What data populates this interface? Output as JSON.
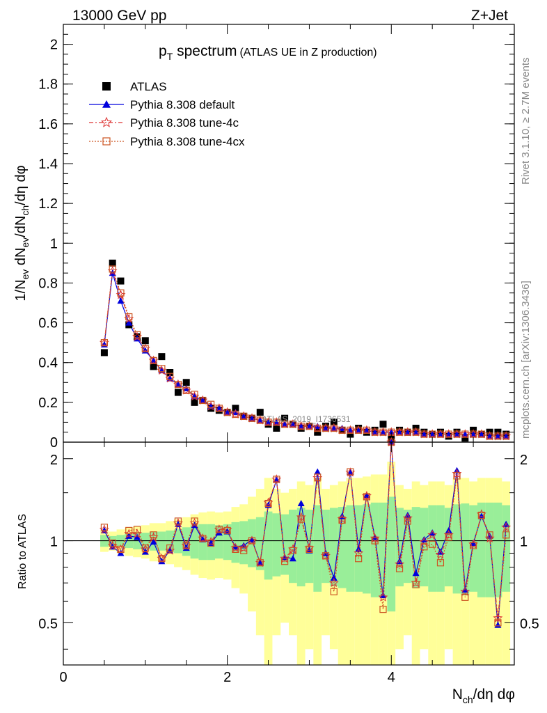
{
  "header": {
    "left": "13000 GeV pp",
    "right": "Z+Jet"
  },
  "title": {
    "main": "p",
    "sub": "T",
    "rest": " spectrum",
    "small": "(ATLAS UE in Z production)"
  },
  "side_labels": {
    "rivet": "Rivet 3.1.10, ≥ 2.7M events",
    "mcplots": "mcplots.cern.ch [arXiv:1306.3436]"
  },
  "watermark": "ATLAS_2019_I1736531",
  "colors": {
    "data": "#000000",
    "default": "#0000dd",
    "tune4c": "#dd3333",
    "tune4cx": "#cc5522",
    "band_yellow": "#ffff99",
    "band_green": "#99ee99"
  },
  "chart_data": [
    {
      "type": "scatter",
      "panel": "main",
      "ylabel": "1/N_ev dN_ev/dN_ch/dη dφ",
      "xlim": [
        0,
        5.5
      ],
      "ylim": [
        0,
        2.1
      ],
      "yticks": [
        0,
        0.2,
        0.4,
        0.6,
        0.8,
        1,
        1.2,
        1.4,
        1.6,
        1.8,
        2
      ],
      "ytick_labels": [
        "0",
        "0.2",
        "0.4",
        "0.6",
        "0.8",
        "1",
        "1.2",
        "1.4",
        "1.6",
        "1.8",
        "2"
      ],
      "legend_position": "top-left",
      "x": [
        0.5,
        0.6,
        0.7,
        0.8,
        0.9,
        1.0,
        1.1,
        1.2,
        1.3,
        1.4,
        1.5,
        1.6,
        1.7,
        1.8,
        1.9,
        2.0,
        2.1,
        2.2,
        2.3,
        2.4,
        2.5,
        2.6,
        2.7,
        2.8,
        2.9,
        3.0,
        3.1,
        3.2,
        3.3,
        3.4,
        3.5,
        3.6,
        3.7,
        3.8,
        3.9,
        4.0,
        4.1,
        4.2,
        4.3,
        4.4,
        4.5,
        4.6,
        4.7,
        4.8,
        4.9,
        5.0,
        5.1,
        5.2,
        5.3,
        5.4
      ],
      "series": [
        {
          "name": "ATLAS",
          "marker": "square",
          "values": [
            0.45,
            0.9,
            0.81,
            0.59,
            0.53,
            0.51,
            0.38,
            0.43,
            0.35,
            0.25,
            0.3,
            0.2,
            0.21,
            0.17,
            0.16,
            0.15,
            0.17,
            0.13,
            0.12,
            0.15,
            0.09,
            0.07,
            0.12,
            0.09,
            0.07,
            0.08,
            0.05,
            0.08,
            0.1,
            0.06,
            0.04,
            0.07,
            0.05,
            0.06,
            0.09,
            0.02,
            0.06,
            0.05,
            0.07,
            0.05,
            0.04,
            0.05,
            0.03,
            0.05,
            0.02,
            0.06,
            0.04,
            0.05,
            0.05,
            0.04
          ]
        },
        {
          "name": "Pythia 8.308 default",
          "marker": "triangle",
          "values": [
            0.49,
            0.85,
            0.71,
            0.6,
            0.52,
            0.46,
            0.41,
            0.36,
            0.32,
            0.29,
            0.27,
            0.23,
            0.21,
            0.18,
            0.17,
            0.15,
            0.15,
            0.13,
            0.12,
            0.11,
            0.1,
            0.1,
            0.09,
            0.09,
            0.08,
            0.08,
            0.08,
            0.07,
            0.07,
            0.07,
            0.06,
            0.06,
            0.06,
            0.05,
            0.05,
            0.05,
            0.05,
            0.05,
            0.05,
            0.04,
            0.04,
            0.04,
            0.04,
            0.04,
            0.04,
            0.04,
            0.04,
            0.03,
            0.03,
            0.03
          ]
        },
        {
          "name": "Pythia 8.308 tune-4c",
          "marker": "star",
          "values": [
            0.5,
            0.86,
            0.74,
            0.62,
            0.53,
            0.47,
            0.41,
            0.36,
            0.32,
            0.29,
            0.26,
            0.23,
            0.21,
            0.18,
            0.17,
            0.15,
            0.14,
            0.13,
            0.12,
            0.11,
            0.1,
            0.1,
            0.09,
            0.09,
            0.08,
            0.08,
            0.07,
            0.07,
            0.07,
            0.06,
            0.06,
            0.06,
            0.06,
            0.05,
            0.05,
            0.05,
            0.05,
            0.05,
            0.05,
            0.04,
            0.04,
            0.04,
            0.04,
            0.04,
            0.04,
            0.04,
            0.04,
            0.03,
            0.03,
            0.03
          ]
        },
        {
          "name": "Pythia 8.308 tune-4cx",
          "marker": "open-square",
          "values": [
            0.5,
            0.87,
            0.75,
            0.63,
            0.54,
            0.47,
            0.41,
            0.37,
            0.33,
            0.29,
            0.26,
            0.24,
            0.21,
            0.19,
            0.17,
            0.15,
            0.14,
            0.13,
            0.12,
            0.11,
            0.1,
            0.1,
            0.09,
            0.09,
            0.08,
            0.08,
            0.07,
            0.07,
            0.07,
            0.06,
            0.06,
            0.06,
            0.06,
            0.05,
            0.05,
            0.05,
            0.05,
            0.05,
            0.05,
            0.04,
            0.04,
            0.04,
            0.04,
            0.04,
            0.04,
            0.04,
            0.04,
            0.03,
            0.03,
            0.03
          ]
        }
      ]
    },
    {
      "type": "line",
      "panel": "ratio",
      "ylabel": "Ratio to ATLAS",
      "xlabel": "N_ch/dη dφ",
      "xlim": [
        0,
        5.5
      ],
      "ylim": [
        0.35,
        2.3
      ],
      "log_y": true,
      "xticks": [
        0,
        2,
        4
      ],
      "xtick_labels": [
        "0",
        "2",
        "4"
      ],
      "yticks": [
        0.5,
        1,
        2
      ],
      "ytick_labels": [
        "0.5",
        "1",
        "2"
      ],
      "x": [
        0.5,
        0.6,
        0.7,
        0.8,
        0.9,
        1.0,
        1.1,
        1.2,
        1.3,
        1.4,
        1.5,
        1.6,
        1.7,
        1.8,
        1.9,
        2.0,
        2.1,
        2.2,
        2.3,
        2.4,
        2.5,
        2.6,
        2.7,
        2.8,
        2.9,
        3.0,
        3.1,
        3.2,
        3.3,
        3.4,
        3.5,
        3.6,
        3.7,
        3.8,
        3.9,
        4.0,
        4.1,
        4.2,
        4.3,
        4.4,
        4.5,
        4.6,
        4.7,
        4.8,
        4.9,
        5.0,
        5.1,
        5.2,
        5.3,
        5.4
      ],
      "band_green_halfwidth": [
        0.05,
        0.04,
        0.05,
        0.06,
        0.07,
        0.07,
        0.08,
        0.08,
        0.09,
        0.1,
        0.12,
        0.14,
        0.15,
        0.15,
        0.14,
        0.15,
        0.17,
        0.18,
        0.2,
        0.22,
        0.28,
        0.26,
        0.25,
        0.3,
        0.32,
        0.3,
        0.35,
        0.3,
        0.32,
        0.33,
        0.35,
        0.35,
        0.36,
        0.38,
        0.38,
        0.45,
        0.32,
        0.3,
        0.33,
        0.32,
        0.35,
        0.35,
        0.32,
        0.36,
        0.37,
        0.35,
        0.38,
        0.38,
        0.38,
        0.35
      ],
      "band_yellow_halfwidth": [
        0.09,
        0.08,
        0.1,
        0.12,
        0.13,
        0.14,
        0.16,
        0.16,
        0.18,
        0.2,
        0.22,
        0.25,
        0.27,
        0.28,
        0.27,
        0.28,
        0.33,
        0.36,
        0.45,
        0.55,
        0.7,
        0.55,
        0.5,
        0.55,
        0.65,
        0.6,
        0.7,
        0.55,
        0.6,
        0.65,
        0.7,
        0.7,
        0.72,
        0.75,
        0.75,
        0.95,
        0.6,
        0.55,
        0.65,
        0.6,
        0.65,
        0.65,
        0.6,
        0.7,
        0.7,
        0.65,
        0.7,
        0.7,
        0.7,
        0.65
      ],
      "series": [
        {
          "name": "Pythia 8.308 default",
          "values": [
            1.09,
            0.95,
            0.9,
            1.04,
            1.03,
            0.91,
            0.99,
            0.84,
            0.92,
            1.15,
            0.94,
            1.14,
            1.01,
            0.98,
            1.07,
            1.08,
            0.95,
            0.96,
            1.01,
            0.83,
            1.35,
            1.67,
            0.87,
            0.86,
            1.37,
            0.92,
            1.79,
            0.9,
            0.73,
            1.23,
            1.78,
            0.93,
            1.47,
            1.03,
            0.63,
            2.3,
            0.84,
            1.24,
            0.76,
            1.01,
            1.07,
            0.91,
            1.09,
            1.81,
            0.66,
            0.98,
            1.23,
            1.04,
            0.49,
            1.15
          ]
        },
        {
          "name": "Pythia 8.308 tune-4c",
          "values": [
            1.1,
            0.96,
            0.93,
            1.06,
            1.06,
            0.93,
            1.03,
            0.86,
            0.92,
            1.16,
            0.96,
            1.16,
            1.02,
            0.99,
            1.1,
            1.1,
            0.94,
            0.94,
            1.0,
            0.83,
            1.38,
            1.68,
            0.86,
            0.93,
            1.22,
            0.94,
            1.7,
            0.88,
            0.7,
            1.2,
            1.78,
            0.9,
            1.46,
            1.02,
            0.62,
            2.3,
            0.82,
            1.21,
            0.7,
            0.99,
            1.05,
            0.89,
            1.05,
            1.76,
            0.65,
            0.97,
            1.25,
            1.02,
            0.52,
            1.12
          ]
        },
        {
          "name": "Pythia 8.308 tune-4cx",
          "values": [
            1.12,
            0.98,
            0.93,
            1.09,
            1.1,
            0.94,
            1.05,
            0.86,
            0.94,
            1.18,
            0.96,
            1.18,
            1.02,
            0.98,
            1.1,
            1.09,
            0.93,
            0.92,
            1.0,
            0.83,
            1.37,
            1.68,
            0.84,
            0.92,
            1.2,
            0.93,
            1.71,
            0.88,
            0.65,
            1.19,
            1.79,
            0.86,
            1.45,
            1.0,
            0.56,
            2.3,
            0.79,
            1.18,
            0.69,
            0.95,
            0.97,
            0.83,
            1.03,
            1.73,
            0.62,
            0.96,
            1.24,
            1.05,
            0.5,
            1.05
          ]
        }
      ]
    }
  ]
}
